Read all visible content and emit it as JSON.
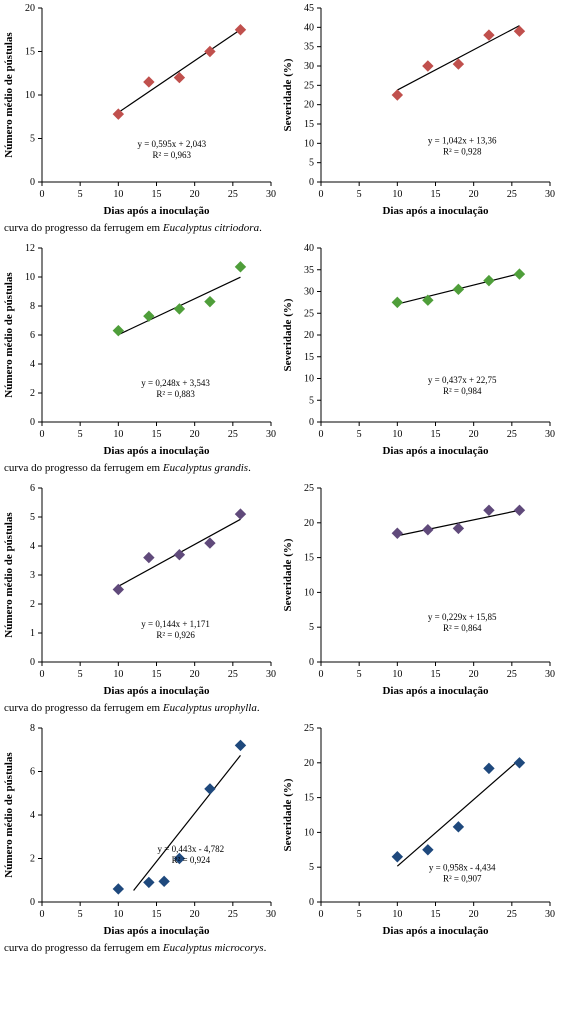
{
  "captions": {
    "c1": {
      "prefix": "curva do progresso da ferrugem em ",
      "species": "Eucalyptus citriodora",
      "suffix": "."
    },
    "c2": {
      "prefix": "curva do progresso da ferrugem em ",
      "species": "Eucalyptus grandis",
      "suffix": "."
    },
    "c3": {
      "prefix": "curva do progresso da ferrugem em ",
      "species": "Eucalyptus urophylla",
      "suffix": "."
    },
    "c4": {
      "prefix": "curva do progresso da ferrugem em ",
      "species": "Eucalyptus microcorys",
      "suffix": "."
    }
  },
  "common": {
    "xlabel": "Dias após a inoculação",
    "ylabel_pustulas": "Número médio de pústulas",
    "ylabel_sev": "Severidade (%)",
    "xlim": [
      0,
      30
    ],
    "xtick_step": 5,
    "font_axis": 11,
    "font_tick": 10,
    "font_eq": 9,
    "line_color": "#000000",
    "bg": "#ffffff",
    "marker_size": 5
  },
  "plots": {
    "p1L": {
      "type": "scatter-line",
      "ylim": [
        0,
        20
      ],
      "ytick_step": 5,
      "x": [
        10,
        14,
        18,
        22,
        26
      ],
      "y": [
        7.8,
        11.5,
        12.0,
        15.0,
        17.5
      ],
      "color": "#c0504d",
      "marker": "diamond",
      "eq": "y = 0,595x + 2,043",
      "r2": "R² = 0,963",
      "line_x": [
        10,
        26
      ],
      "line_y": [
        7.99,
        17.51
      ],
      "eq_x": 17.0,
      "eq_y": 4.0
    },
    "p1R": {
      "type": "scatter-line",
      "ylim": [
        0,
        45
      ],
      "ytick_step": 5,
      "x": [
        10,
        14,
        18,
        22,
        26
      ],
      "y": [
        22.5,
        30,
        30.5,
        38,
        39
      ],
      "color": "#c0504d",
      "marker": "diamond",
      "eq": "y = 1,042x + 13,36",
      "r2": "R² = 0,928",
      "line_x": [
        10,
        26
      ],
      "line_y": [
        23.78,
        40.45
      ],
      "eq_x": 18.5,
      "eq_y": 10.0
    },
    "p2L": {
      "type": "scatter-line",
      "ylim": [
        0,
        12
      ],
      "ytick_step": 2,
      "x": [
        10,
        14,
        18,
        22,
        26
      ],
      "y": [
        6.3,
        7.3,
        7.8,
        8.3,
        10.7
      ],
      "color": "#4f9e3a",
      "marker": "diamond",
      "eq": "y = 0,248x + 3,543",
      "r2": "R² = 0,883",
      "line_x": [
        10,
        26
      ],
      "line_y": [
        6.02,
        9.99
      ],
      "eq_x": 17.5,
      "eq_y": 2.5
    },
    "p2R": {
      "type": "scatter-line",
      "ylim": [
        0,
        40
      ],
      "ytick_step": 5,
      "x": [
        10,
        14,
        18,
        22,
        26
      ],
      "y": [
        27.5,
        28.0,
        30.5,
        32.5,
        34.0
      ],
      "color": "#4f9e3a",
      "marker": "diamond",
      "eq": "y = 0,437x + 22,75",
      "r2": "R² = 0,984",
      "line_x": [
        10,
        26
      ],
      "line_y": [
        27.12,
        34.11
      ],
      "eq_x": 18.5,
      "eq_y": 9.0
    },
    "p3L": {
      "type": "scatter-line",
      "ylim": [
        0,
        6
      ],
      "ytick_step": 1,
      "x": [
        10,
        14,
        18,
        22,
        26
      ],
      "y": [
        2.5,
        3.6,
        3.7,
        4.1,
        5.1
      ],
      "color": "#604a7b",
      "marker": "diamond",
      "eq": "y = 0,144x + 1,171",
      "r2": "R² = 0,926",
      "line_x": [
        10,
        26
      ],
      "line_y": [
        2.61,
        4.92
      ],
      "eq_x": 17.5,
      "eq_y": 1.2
    },
    "p3R": {
      "type": "scatter-line",
      "ylim": [
        0,
        25
      ],
      "ytick_step": 5,
      "x": [
        10,
        14,
        18,
        22,
        26
      ],
      "y": [
        18.5,
        19.0,
        19.2,
        21.8,
        21.8
      ],
      "color": "#604a7b",
      "marker": "diamond",
      "eq": "y = 0,229x + 15,85",
      "r2": "R² = 0,864",
      "line_x": [
        10,
        26
      ],
      "line_y": [
        18.14,
        21.8
      ],
      "eq_x": 18.5,
      "eq_y": 6.0
    },
    "p4L": {
      "type": "scatter-line",
      "ylim": [
        0,
        8
      ],
      "ytick_step": 2,
      "x": [
        10,
        14,
        16,
        18,
        22,
        26
      ],
      "y": [
        0.6,
        0.9,
        0.95,
        2.0,
        5.2,
        7.2
      ],
      "color": "#1f497d",
      "marker": "diamond",
      "eq": "y = 0,443x - 4,782",
      "r2": "R² = 0,924",
      "line_x": [
        12,
        26
      ],
      "line_y": [
        0.53,
        6.74
      ],
      "eq_x": 19.5,
      "eq_y": 2.3
    },
    "p4R": {
      "type": "scatter-line",
      "ylim": [
        0,
        25
      ],
      "ytick_step": 5,
      "x": [
        10,
        14,
        18,
        22,
        26
      ],
      "y": [
        6.5,
        7.5,
        10.8,
        19.2,
        20.0
      ],
      "color": "#1f497d",
      "marker": "diamond",
      "eq": "y = 0,958x - 4,434",
      "r2": "R² = 0,907",
      "line_x": [
        10,
        26
      ],
      "line_y": [
        5.15,
        20.47
      ],
      "eq_x": 18.5,
      "eq_y": 4.5
    }
  }
}
